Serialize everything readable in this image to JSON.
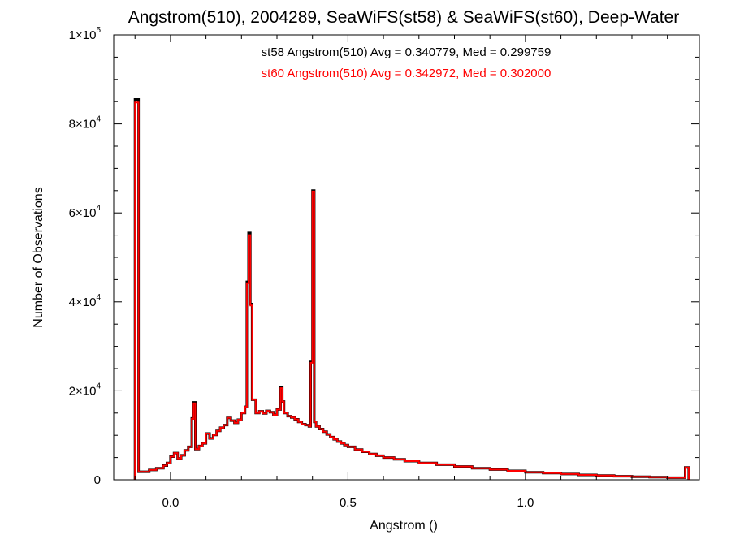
{
  "chart_data": {
    "type": "histogram",
    "title": "Angstrom(510), 2004289, SeaWiFS(st58) & SeaWiFS(st60), Deep-Water",
    "xlabel": "Angstrom ()",
    "ylabel": "Number of Observations",
    "xlim": [
      -0.16,
      1.49
    ],
    "ylim": [
      0,
      100000
    ],
    "x_ticks": [
      {
        "value": 0.0,
        "label": "0.0"
      },
      {
        "value": 0.5,
        "label": "0.5"
      },
      {
        "value": 1.0,
        "label": "1.0"
      }
    ],
    "y_ticks": [
      {
        "value": 0,
        "mantissa": "0",
        "exponent": ""
      },
      {
        "value": 20000,
        "mantissa": "2×10",
        "exponent": "4"
      },
      {
        "value": 40000,
        "mantissa": "4×10",
        "exponent": "4"
      },
      {
        "value": 60000,
        "mantissa": "6×10",
        "exponent": "4"
      },
      {
        "value": 80000,
        "mantissa": "8×10",
        "exponent": "4"
      },
      {
        "value": 100000,
        "mantissa": "1×10",
        "exponent": "5"
      }
    ],
    "annotations": [
      {
        "text": "st58 Angstrom(510) Avg = 0.340779, Med = 0.299759",
        "color": "#000000"
      },
      {
        "text": "st60 Angstrom(510) Avg = 0.342972, Med = 0.302000",
        "color": "#ff0000"
      }
    ],
    "series": [
      {
        "name": "st58",
        "color": "#000000",
        "points": [
          [
            -0.1,
            85500
          ],
          [
            -0.09,
            1800
          ],
          [
            -0.06,
            2200
          ],
          [
            -0.04,
            2600
          ],
          [
            -0.02,
            3200
          ],
          [
            -0.01,
            3800
          ],
          [
            0.0,
            5200
          ],
          [
            0.01,
            6000
          ],
          [
            0.02,
            4800
          ],
          [
            0.03,
            5500
          ],
          [
            0.04,
            6600
          ],
          [
            0.05,
            7400
          ],
          [
            0.06,
            13800
          ],
          [
            0.065,
            17400
          ],
          [
            0.07,
            6900
          ],
          [
            0.08,
            7600
          ],
          [
            0.09,
            8200
          ],
          [
            0.1,
            10400
          ],
          [
            0.11,
            9300
          ],
          [
            0.12,
            10100
          ],
          [
            0.13,
            11000
          ],
          [
            0.14,
            11700
          ],
          [
            0.15,
            12300
          ],
          [
            0.16,
            13900
          ],
          [
            0.17,
            13300
          ],
          [
            0.18,
            12800
          ],
          [
            0.19,
            13500
          ],
          [
            0.2,
            15000
          ],
          [
            0.21,
            16400
          ],
          [
            0.215,
            44500
          ],
          [
            0.22,
            55500
          ],
          [
            0.225,
            39500
          ],
          [
            0.23,
            18000
          ],
          [
            0.24,
            15000
          ],
          [
            0.25,
            15400
          ],
          [
            0.26,
            14900
          ],
          [
            0.27,
            15500
          ],
          [
            0.28,
            15200
          ],
          [
            0.29,
            14600
          ],
          [
            0.3,
            15800
          ],
          [
            0.31,
            20800
          ],
          [
            0.315,
            17600
          ],
          [
            0.32,
            15000
          ],
          [
            0.33,
            14300
          ],
          [
            0.34,
            14000
          ],
          [
            0.35,
            13600
          ],
          [
            0.36,
            13000
          ],
          [
            0.37,
            12500
          ],
          [
            0.38,
            12300
          ],
          [
            0.39,
            12000
          ],
          [
            0.395,
            26500
          ],
          [
            0.4,
            65000
          ],
          [
            0.405,
            13000
          ],
          [
            0.41,
            12000
          ],
          [
            0.42,
            11400
          ],
          [
            0.43,
            10800
          ],
          [
            0.44,
            10200
          ],
          [
            0.45,
            9600
          ],
          [
            0.46,
            9100
          ],
          [
            0.47,
            8600
          ],
          [
            0.48,
            8200
          ],
          [
            0.49,
            7800
          ],
          [
            0.5,
            7400
          ],
          [
            0.52,
            6800
          ],
          [
            0.54,
            6300
          ],
          [
            0.56,
            5800
          ],
          [
            0.58,
            5400
          ],
          [
            0.6,
            5000
          ],
          [
            0.63,
            4600
          ],
          [
            0.66,
            4200
          ],
          [
            0.7,
            3800
          ],
          [
            0.75,
            3400
          ],
          [
            0.8,
            3000
          ],
          [
            0.85,
            2600
          ],
          [
            0.9,
            2300
          ],
          [
            0.95,
            2000
          ],
          [
            1.0,
            1700
          ],
          [
            1.05,
            1500
          ],
          [
            1.1,
            1300
          ],
          [
            1.15,
            1100
          ],
          [
            1.2,
            950
          ],
          [
            1.25,
            800
          ],
          [
            1.3,
            680
          ],
          [
            1.35,
            580
          ],
          [
            1.4,
            480
          ],
          [
            1.45,
            2800
          ]
        ]
      },
      {
        "name": "st60",
        "color": "#ff0000",
        "points": [
          [
            -0.1,
            84800
          ],
          [
            -0.09,
            1800
          ],
          [
            -0.06,
            2200
          ],
          [
            -0.04,
            2600
          ],
          [
            -0.02,
            3200
          ],
          [
            -0.01,
            3800
          ],
          [
            0.0,
            5200
          ],
          [
            0.01,
            6000
          ],
          [
            0.02,
            4800
          ],
          [
            0.03,
            5500
          ],
          [
            0.04,
            6600
          ],
          [
            0.05,
            7400
          ],
          [
            0.06,
            13700
          ],
          [
            0.065,
            17200
          ],
          [
            0.07,
            6900
          ],
          [
            0.08,
            7600
          ],
          [
            0.09,
            8200
          ],
          [
            0.1,
            10400
          ],
          [
            0.11,
            9300
          ],
          [
            0.12,
            10100
          ],
          [
            0.13,
            11000
          ],
          [
            0.14,
            11700
          ],
          [
            0.15,
            12300
          ],
          [
            0.16,
            13900
          ],
          [
            0.17,
            13300
          ],
          [
            0.18,
            12800
          ],
          [
            0.19,
            13500
          ],
          [
            0.2,
            15000
          ],
          [
            0.21,
            16400
          ],
          [
            0.215,
            44200
          ],
          [
            0.22,
            55000
          ],
          [
            0.225,
            39200
          ],
          [
            0.23,
            18000
          ],
          [
            0.24,
            15000
          ],
          [
            0.25,
            15400
          ],
          [
            0.26,
            14900
          ],
          [
            0.27,
            15500
          ],
          [
            0.28,
            15200
          ],
          [
            0.29,
            14600
          ],
          [
            0.3,
            15800
          ],
          [
            0.31,
            20600
          ],
          [
            0.315,
            17600
          ],
          [
            0.32,
            15000
          ],
          [
            0.33,
            14300
          ],
          [
            0.34,
            14000
          ],
          [
            0.35,
            13600
          ],
          [
            0.36,
            13000
          ],
          [
            0.37,
            12500
          ],
          [
            0.38,
            12300
          ],
          [
            0.39,
            12000
          ],
          [
            0.395,
            26300
          ],
          [
            0.4,
            64800
          ],
          [
            0.405,
            13000
          ],
          [
            0.41,
            12000
          ],
          [
            0.42,
            11400
          ],
          [
            0.43,
            10800
          ],
          [
            0.44,
            10200
          ],
          [
            0.45,
            9600
          ],
          [
            0.46,
            9100
          ],
          [
            0.47,
            8600
          ],
          [
            0.48,
            8200
          ],
          [
            0.49,
            7800
          ],
          [
            0.5,
            7400
          ],
          [
            0.52,
            6800
          ],
          [
            0.54,
            6300
          ],
          [
            0.56,
            5800
          ],
          [
            0.58,
            5400
          ],
          [
            0.6,
            5000
          ],
          [
            0.63,
            4600
          ],
          [
            0.66,
            4200
          ],
          [
            0.7,
            3800
          ],
          [
            0.75,
            3400
          ],
          [
            0.8,
            3000
          ],
          [
            0.85,
            2600
          ],
          [
            0.9,
            2300
          ],
          [
            0.95,
            2000
          ],
          [
            1.0,
            1700
          ],
          [
            1.05,
            1500
          ],
          [
            1.1,
            1300
          ],
          [
            1.15,
            1100
          ],
          [
            1.2,
            950
          ],
          [
            1.25,
            800
          ],
          [
            1.3,
            680
          ],
          [
            1.35,
            580
          ],
          [
            1.4,
            480
          ],
          [
            1.45,
            2800
          ]
        ]
      }
    ]
  }
}
